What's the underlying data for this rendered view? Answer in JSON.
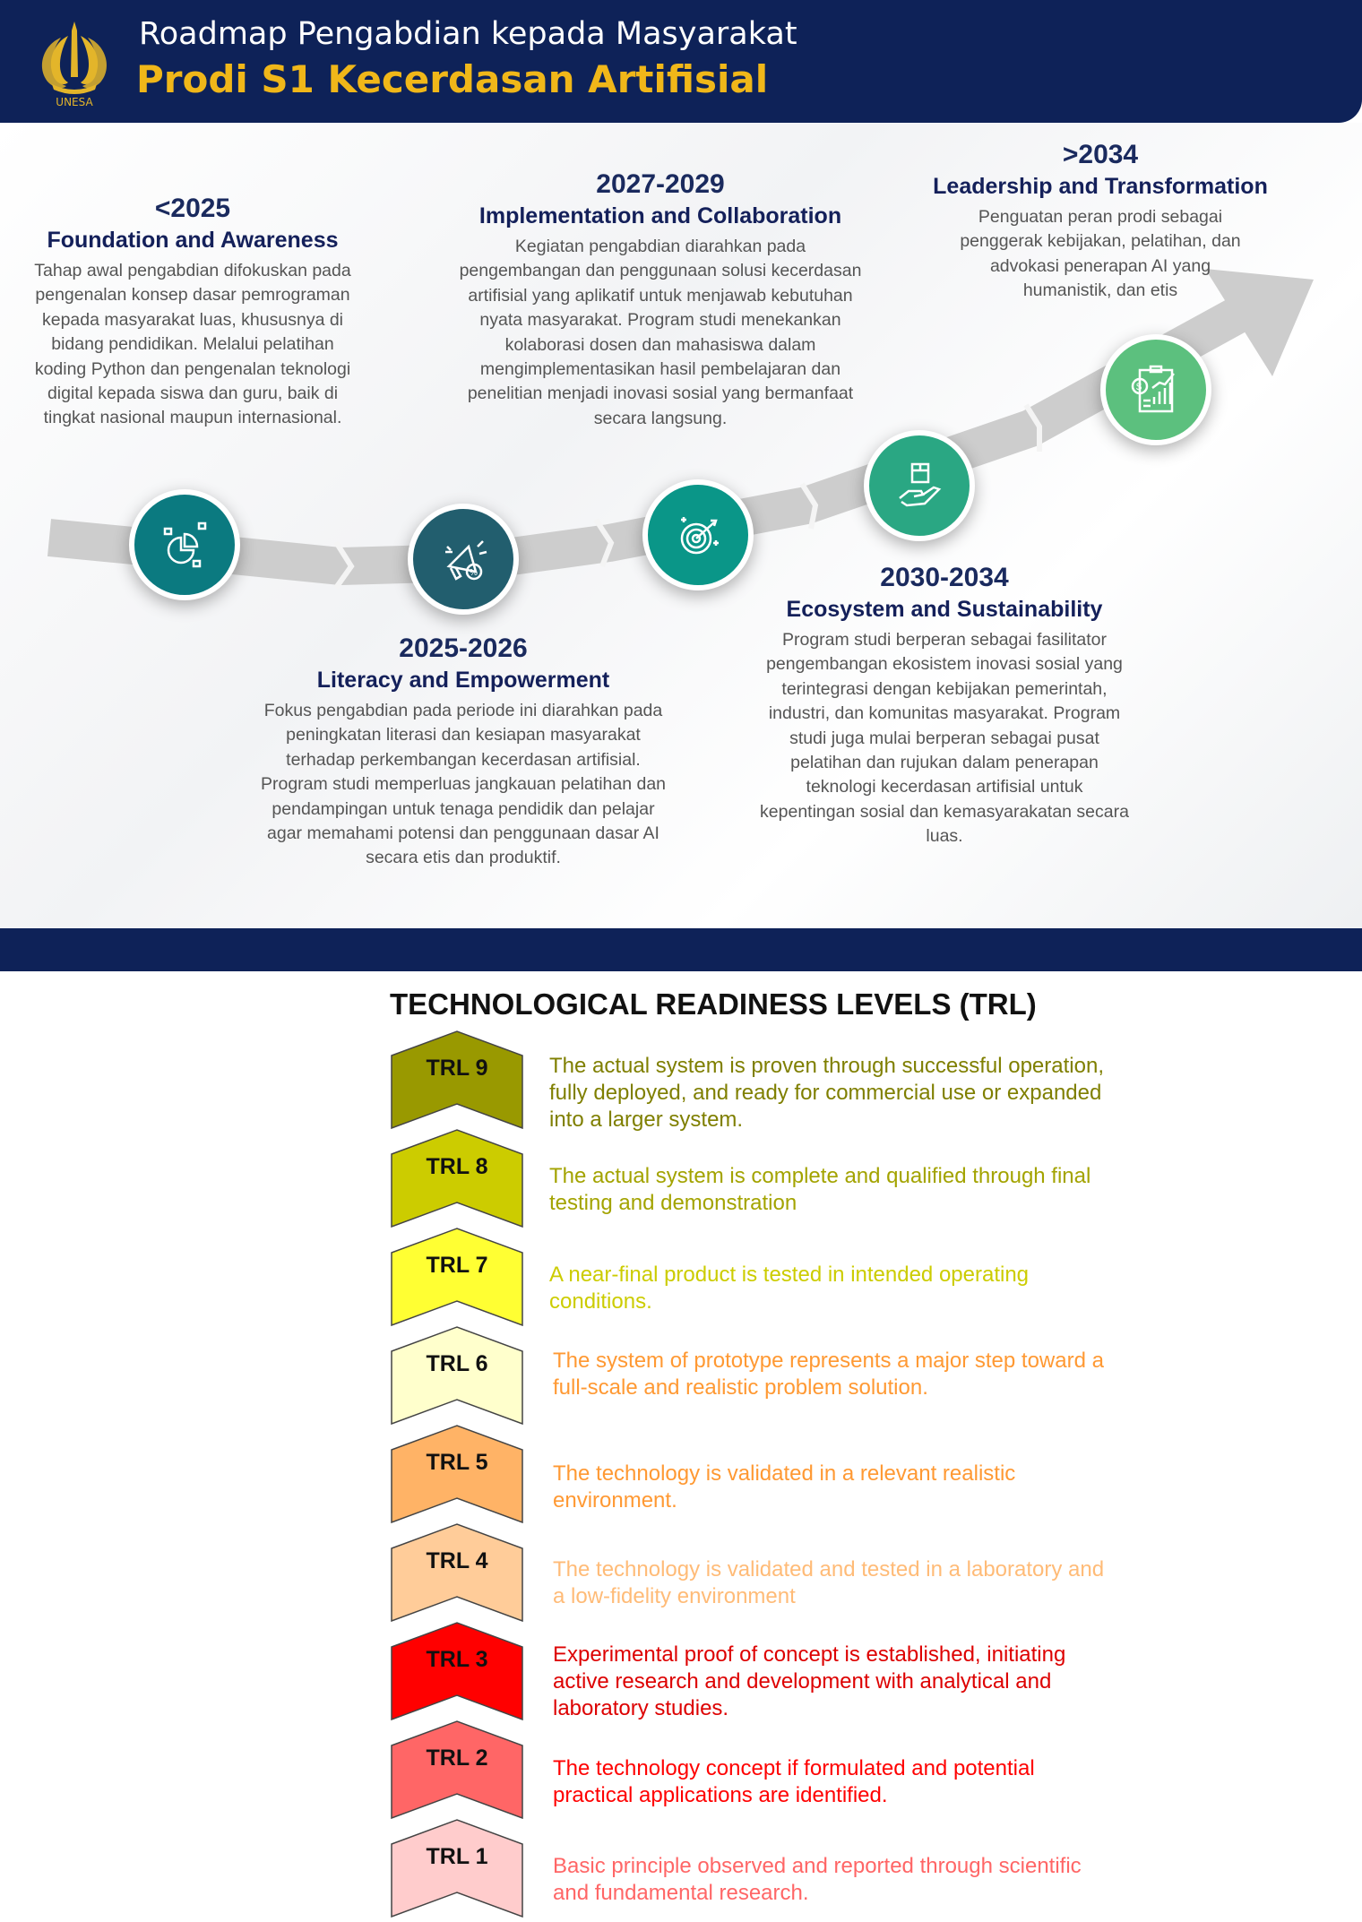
{
  "header": {
    "logo_text": "UNESA",
    "title": "Roadmap Pengabdian kepada Masyarakat",
    "subtitle": "Prodi S1 Kecerdasan Artifisial"
  },
  "roadmap": [
    {
      "period": "<2025",
      "title": "Foundation and Awareness",
      "body": "Tahap awal pengabdian difokuskan pada pengenalan konsep dasar pemrograman kepada masyarakat luas, khususnya di bidang pendidikan. Melalui pelatihan koding Python dan pengenalan teknologi digital kepada siswa dan guru, baik di tingkat nasional maupun internasional.",
      "icon": "pie-chart-analysis-icon",
      "color": "#0b7a80"
    },
    {
      "period": "2025-2026",
      "title": "Literacy and Empowerment",
      "body": "Fokus pengabdian pada periode ini diarahkan pada peningkatan literasi dan kesiapan masyarakat terhadap perkembangan kecerdasan artifisial. Program studi memperluas jangkauan pelatihan dan pendampingan untuk tenaga pendidik dan pelajar agar memahami potensi dan penggunaan dasar AI secara etis dan produktif.",
      "icon": "megaphone-icon",
      "color": "#225e6e"
    },
    {
      "period": "2027-2029",
      "title": "Implementation and Collaboration",
      "body": "Kegiatan pengabdian diarahkan pada pengembangan dan penggunaan solusi kecerdasan artifisial yang aplikatif untuk menjawab kebutuhan nyata masyarakat. Program studi menekankan kolaborasi dosen dan mahasiswa dalam mengimplementasikan hasil pembelajaran dan penelitian menjadi inovasi sosial yang bermanfaat secara langsung.",
      "icon": "target-icon",
      "color": "#0a9688"
    },
    {
      "period": "2030-2034",
      "title": "Ecosystem and Sustainability",
      "body": "Program studi berperan sebagai fasilitator pengembangan ekosistem inovasi sosial yang terintegrasi dengan kebijakan pemerintah, industri, dan komunitas masyarakat. Program studi juga mulai berperan sebagai pusat pelatihan dan rujukan dalam penerapan teknologi kecerdasan artifisial untuk kepentingan sosial dan kemasyarakatan secara luas.",
      "icon": "hand-box-icon",
      "color": "#2aa783"
    },
    {
      "period": ">2034",
      "title": "Leadership and Transformation",
      "body": "Penguatan peran prodi sebagai penggerak kebijakan, pelatihan, dan advokasi penerapan AI yang humanistik, dan etis",
      "icon": "report-chart-icon",
      "color": "#5cc07e"
    }
  ],
  "trl": {
    "title": "TECHNOLOGICAL READINESS LEVELS (TRL)",
    "levels": [
      {
        "label": "TRL 9",
        "desc": "The actual system is proven through successful operation, fully deployed, and ready for commercial use or expanded into a larger system.",
        "fill": "#999900",
        "text_color": "#7f7f00"
      },
      {
        "label": "TRL 8",
        "desc": "The actual system is complete and qualified through final testing and demonstration",
        "fill": "#cccc00",
        "text_color": "#a3a300"
      },
      {
        "label": "TRL 7",
        "desc": "A near-final product is tested in intended operating conditions.",
        "fill": "#ffff33",
        "text_color": "#cccc00"
      },
      {
        "label": "TRL 6",
        "desc": "The system of prototype represents a major step toward a full-scale and realistic problem solution.",
        "fill": "#ffffcc",
        "text_color": "#ff9933"
      },
      {
        "label": "TRL 5",
        "desc": "The technology is validated in a relevant realistic environment.",
        "fill": "#ffb366",
        "text_color": "#ff9933"
      },
      {
        "label": "TRL 4",
        "desc": "The technology is validated and tested in a laboratory and a low-fidelity environment",
        "fill": "#ffcc99",
        "text_color": "#ffbb77"
      },
      {
        "label": "TRL 3",
        "desc": "Experimental proof of concept is established, initiating active research and development with analytical and laboratory studies.",
        "fill": "#ff0000",
        "text_color": "#dd0000"
      },
      {
        "label": "TRL 2",
        "desc": "The technology concept if formulated and potential practical applications are identified.",
        "fill": "#ff6666",
        "text_color": "#ff0000"
      },
      {
        "label": "TRL 1",
        "desc": "Basic principle observed and reported through scientific and fundamental research.",
        "fill": "#ffcccc",
        "text_color": "#ff6666"
      }
    ]
  }
}
